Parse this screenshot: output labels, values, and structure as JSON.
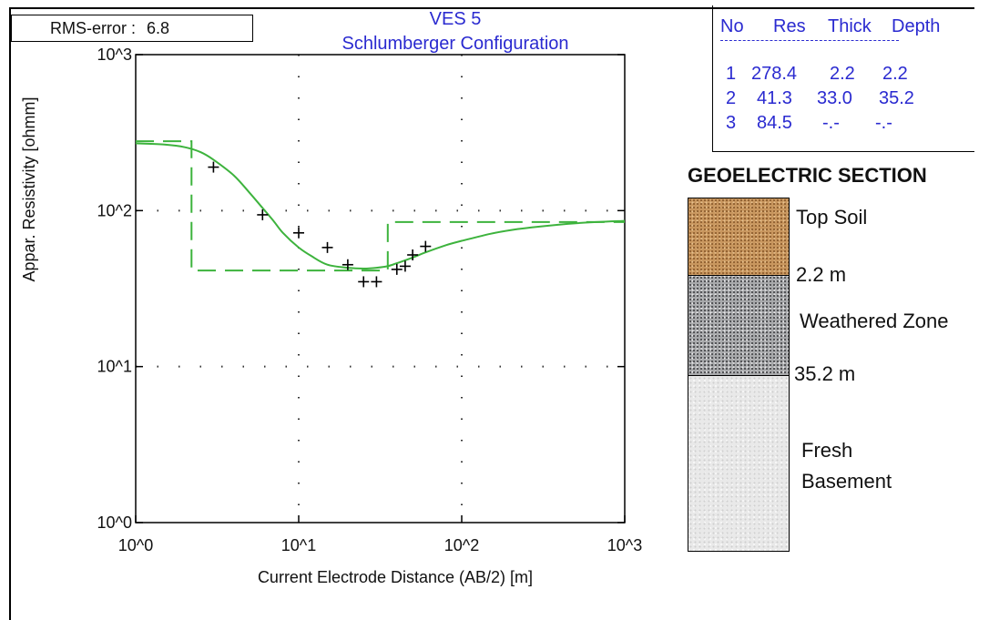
{
  "rms": {
    "label": "RMS-error :",
    "value": "6.8"
  },
  "title_line1": "VES 5",
  "title_line2": "Schlumberger Configuration",
  "chart_data": {
    "type": "line",
    "title": "VES 5 Schlumberger Configuration",
    "xlabel": "Current Electrode Distance (AB/2) [m]",
    "ylabel": "Appar. Resistivity [ohmm]",
    "xscale": "log",
    "yscale": "log",
    "xlim": [
      1,
      1000
    ],
    "ylim": [
      1,
      1000
    ],
    "x_tick_labels": [
      "10^0",
      "10^1",
      "10^2",
      "10^3"
    ],
    "y_tick_labels": [
      "10^0",
      "10^1",
      "10^2",
      "10^3"
    ],
    "grid": "dotted",
    "observed": {
      "marker": "+",
      "x": [
        3.0,
        6.0,
        10.0,
        15.0,
        20.0,
        25.0,
        30.0,
        40.0,
        45.0,
        50.0,
        60.0
      ],
      "y": [
        190,
        94,
        72,
        58,
        45,
        35,
        35,
        42,
        44,
        52,
        59
      ]
    },
    "calculated_curve": {
      "color": "#3db33d",
      "x": [
        1,
        1.5,
        2,
        2.5,
        3,
        4,
        5,
        6,
        7,
        8,
        10,
        12,
        15,
        20,
        25,
        30,
        35,
        40,
        50,
        60,
        80,
        100,
        150,
        200,
        300,
        500,
        1000
      ],
      "y": [
        270,
        265,
        255,
        237,
        212,
        168,
        130,
        104,
        86,
        72,
        58,
        51,
        45,
        43,
        42.5,
        43,
        44,
        46,
        50,
        54,
        60,
        64,
        71,
        75,
        79,
        83,
        86
      ]
    },
    "layer_model": {
      "color": "#3db33d",
      "style": "dashed",
      "resistivity": [
        278.4,
        41.3,
        84.5
      ],
      "depth": [
        2.2,
        35.2
      ]
    }
  },
  "layer_table": {
    "headers": [
      "No",
      "Res",
      "Thick",
      "Depth"
    ],
    "rows": [
      [
        "1",
        "278.4",
        "2.2",
        "2.2"
      ],
      [
        "2",
        "41.3",
        "33.0",
        "35.2"
      ],
      [
        "3",
        "84.5",
        "-.-",
        "-.-"
      ]
    ]
  },
  "geo_section": {
    "title": "GEOELECTRIC SECTION",
    "layer_names": [
      "Top Soil",
      "Weathered Zone",
      "Fresh",
      "Basement"
    ],
    "depth_labels": [
      "2.2 m",
      "35.2 m"
    ]
  }
}
